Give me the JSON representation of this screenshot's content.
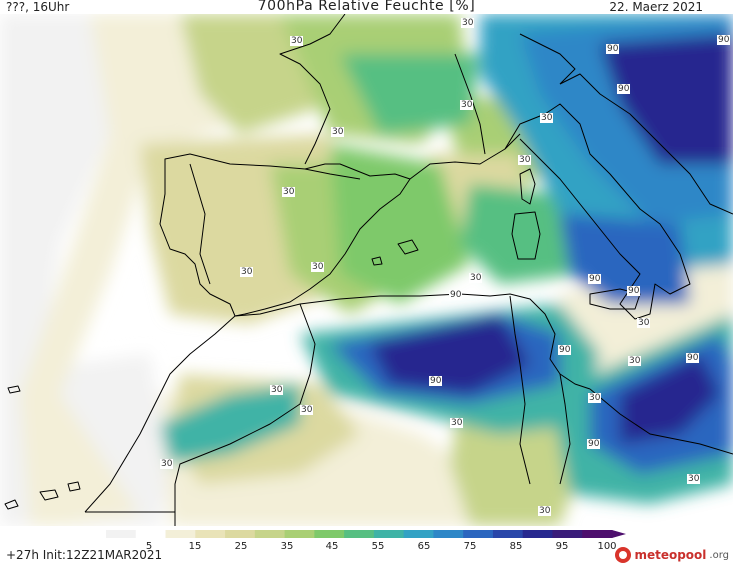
{
  "header": {
    "left": "???, 16Uhr",
    "title": "700hPa Relative Feuchte [%]",
    "date": "22. Maerz 2021"
  },
  "footer": {
    "run": "+27h Init:12Z21MAR2021",
    "logo_name": "meteopool",
    "logo_tld": ".org"
  },
  "colorbar": {
    "ticks": [
      "5",
      "15",
      "25",
      "35",
      "45",
      "55",
      "65",
      "75",
      "85",
      "95",
      "100"
    ],
    "colors": [
      "#f2f2f2",
      "#ffffff",
      "#f3efd8",
      "#e9e3b8",
      "#dcd9a0",
      "#c6d48a",
      "#a9cf74",
      "#7ec96a",
      "#57bf82",
      "#3fb3a6",
      "#33a2c4",
      "#2e87c7",
      "#2b66bf",
      "#2946a9",
      "#27288f",
      "#3a1c7a",
      "#4d0f6d"
    ]
  },
  "contour_labels": [
    "30",
    "30",
    "30",
    "30",
    "30",
    "30",
    "30",
    "30",
    "30",
    "30",
    "30",
    "30",
    "30",
    "30",
    "30",
    "30",
    "30",
    "30",
    "30",
    "90",
    "90",
    "90",
    "90",
    "90",
    "90",
    "90",
    "90",
    "90",
    "90"
  ],
  "map_features": {
    "colors": {
      "water_dry": "#f2f2f2",
      "dry": "#e9e3b8",
      "low": "#c6d48a",
      "mid": "#7ec96a",
      "wet": "#3fb3a6",
      "very_wet": "#2b66bf",
      "saturated": "#27288f",
      "coast": "#000000"
    }
  }
}
